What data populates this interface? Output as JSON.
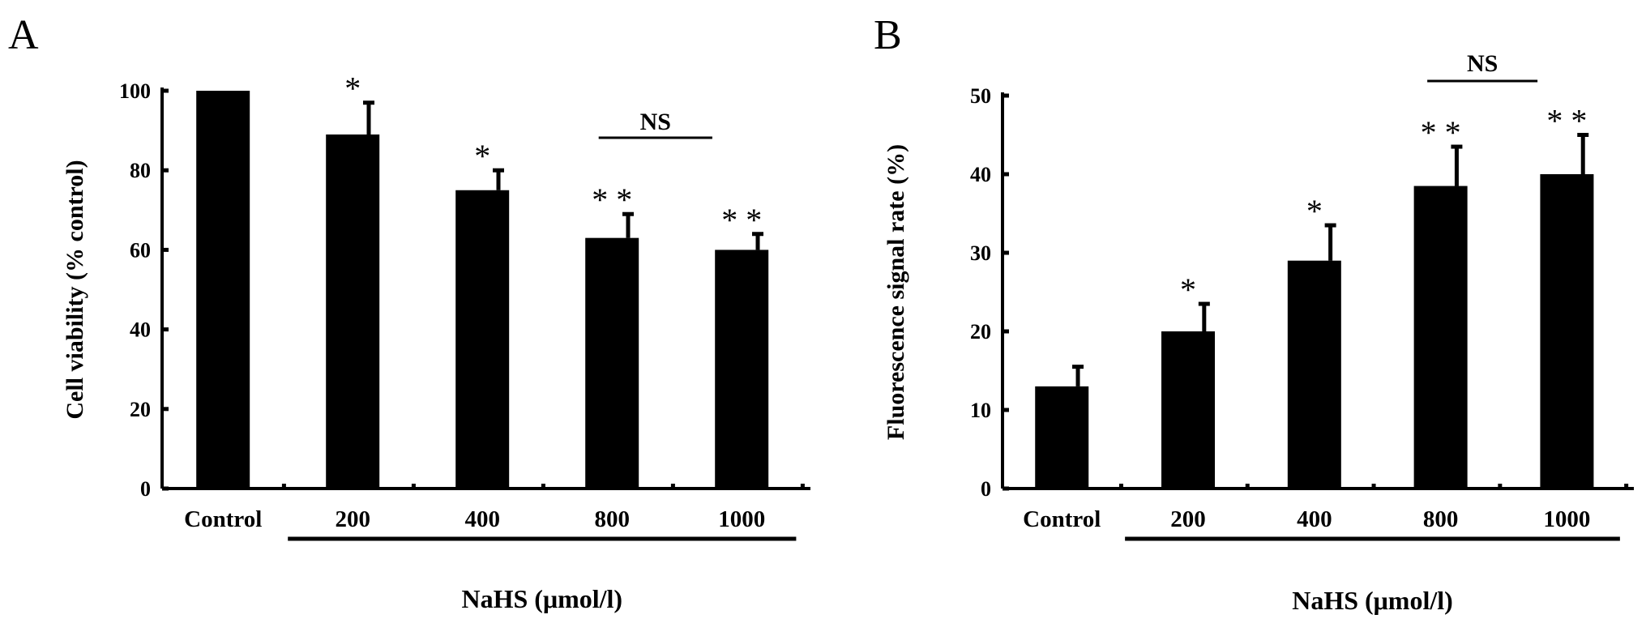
{
  "chart_data": [
    {
      "type": "bar",
      "panel": "A",
      "categories": [
        "Control",
        "200",
        "400",
        "800",
        "1000"
      ],
      "values": [
        100,
        89,
        75,
        63,
        60
      ],
      "errors": [
        0,
        8,
        5,
        6,
        4
      ],
      "annotations": [
        "",
        "*",
        "*",
        "**",
        "**"
      ],
      "ylabel": "Cell viability (% control)",
      "xlabel": "NaHS (μmol/l)",
      "ylim": [
        0,
        100
      ],
      "yticks": [
        0,
        20,
        40,
        60,
        80,
        100
      ],
      "ns_label": "NS",
      "ns_between": [
        "800",
        "1000"
      ],
      "group_span": [
        "200",
        "1000"
      ]
    },
    {
      "type": "bar",
      "panel": "B",
      "categories": [
        "Control",
        "200",
        "400",
        "800",
        "1000"
      ],
      "values": [
        13,
        20,
        29,
        38.5,
        40
      ],
      "errors": [
        2.5,
        3.5,
        4.5,
        5,
        5
      ],
      "annotations": [
        "",
        "*",
        "*",
        "**",
        "**"
      ],
      "ylabel": "Fluorescence signal rate (%)",
      "xlabel": "NaHS (μmol/l)",
      "ylim": [
        0,
        50
      ],
      "yticks": [
        0,
        10,
        20,
        30,
        40,
        50
      ],
      "ns_label": "NS",
      "ns_between": [
        "800",
        "1000"
      ],
      "group_span": [
        "200",
        "1000"
      ]
    }
  ]
}
